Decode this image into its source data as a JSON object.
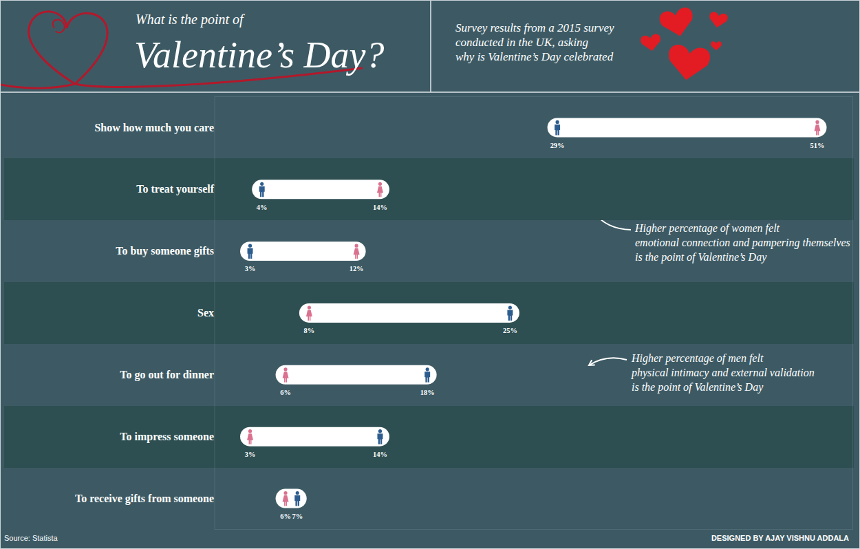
{
  "chart_data": {
    "type": "dumbbell",
    "title": "What is the point of\nValentine’s Day?",
    "subtitle": "Survey results from a 2015 survey\nconducted in the UK, asking\nwhy is Valentine’s Day celebrated",
    "orientation": "horizontal",
    "categories": [
      "Show how much you care",
      "To treat yourself",
      "To buy someone gifts",
      "Sex",
      "To go out for dinner",
      "To impress someone",
      "To receive gifts from someone"
    ],
    "series": [
      {
        "color": "#2d5d8e",
        "marker": "male",
        "values": [
          29,
          4,
          3,
          25,
          18,
          14,
          7
        ],
        "value_labels": [
          "29%",
          "4%",
          "3%",
          "25%",
          "18%",
          "14%",
          "7%"
        ]
      },
      {
        "color": "#d9718f",
        "marker": "female",
        "values": [
          51,
          14,
          12,
          8,
          6,
          3,
          6
        ],
        "value_labels": [
          "51%",
          "14%",
          "12%",
          "8%",
          "6%",
          "3%",
          "6%"
        ]
      }
    ],
    "xlim": [
      0,
      54
    ],
    "tick_labels": "y",
    "data_labels": true,
    "grid": false,
    "annotations": [
      {
        "text": "Higher percentage of women felt\nemotional connection and pampering themselves\nis the point of Valentine’s Day"
      },
      {
        "text": "Higher percentage of men felt\nphysical intimacy and external validation\nis the point of Valentine’s Day"
      }
    ],
    "source": "Source: Statista",
    "credit": "DESIGNED BY AJAY VISHNU ADDALA"
  }
}
